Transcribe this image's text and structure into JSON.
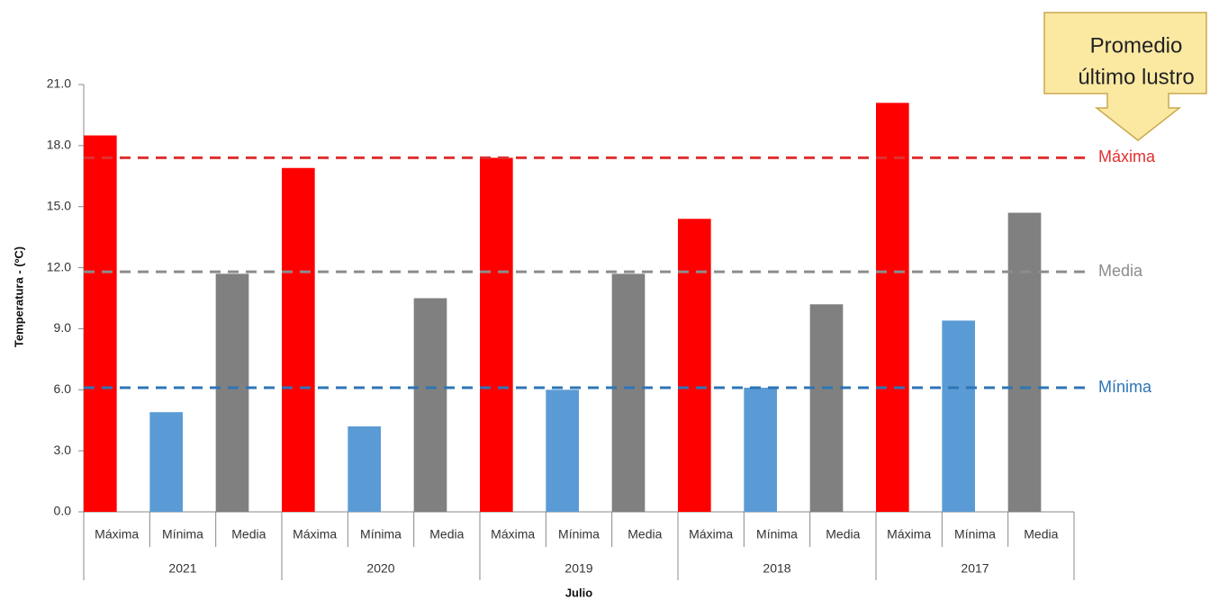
{
  "chart_data": {
    "type": "bar",
    "x_label": "Julio",
    "y_label": "Temperatura - (ºC)",
    "categories": [
      "2021",
      "2020",
      "2019",
      "2018",
      "2017"
    ],
    "series": [
      {
        "name": "Máxima",
        "color": "#ff0000",
        "values": [
          18.5,
          16.9,
          17.4,
          14.4,
          20.1
        ]
      },
      {
        "name": "Mínima",
        "color": "#5b9bd5",
        "values": [
          4.9,
          4.2,
          6.0,
          6.1,
          9.4
        ]
      },
      {
        "name": "Media",
        "color": "#808080",
        "values": [
          11.7,
          10.5,
          11.7,
          10.2,
          14.7
        ]
      }
    ],
    "ylim": [
      0,
      21
    ],
    "yticks": [
      {
        "value": 0,
        "label": "0.0"
      },
      {
        "value": 3,
        "label": "3.0"
      },
      {
        "value": 6,
        "label": "6.0"
      },
      {
        "value": 9,
        "label": "9.0"
      },
      {
        "value": 12,
        "label": "12.0"
      },
      {
        "value": 15,
        "label": "15.0"
      },
      {
        "value": 18,
        "label": "18.0"
      },
      {
        "value": 21,
        "label": "21.0"
      }
    ],
    "reference_lines": [
      {
        "label": "Máxima",
        "value": 17.4,
        "color": "#e03030"
      },
      {
        "label": "Media",
        "value": 11.8,
        "color": "#8c8c8c"
      },
      {
        "label": "Mínima",
        "value": 6.1,
        "color": "#2e75b6"
      }
    ],
    "annotation": [
      "Promedio",
      "último lustro"
    ]
  }
}
